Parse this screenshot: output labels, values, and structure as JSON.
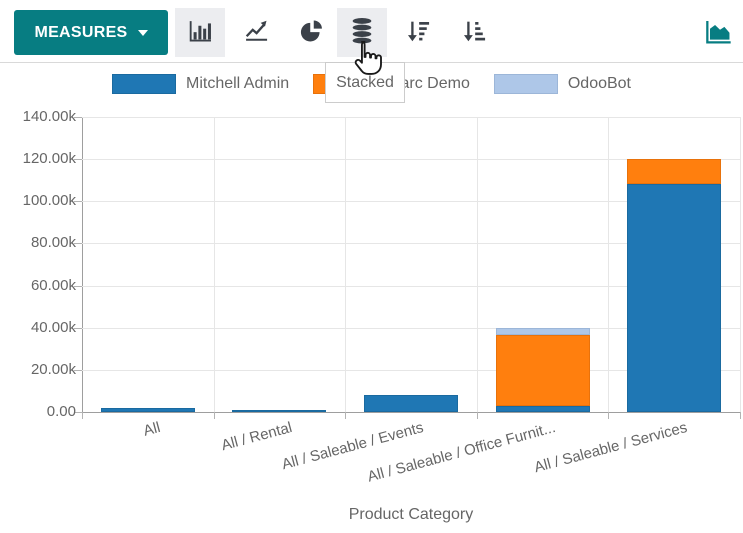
{
  "toolbar": {
    "measures_label": "MEASURES",
    "stacked_tooltip": "Stacked",
    "buttons": [
      {
        "name": "bar-chart",
        "active": true
      },
      {
        "name": "line-chart",
        "active": false
      },
      {
        "name": "pie-chart",
        "active": false
      },
      {
        "name": "stacked-toggle",
        "active": false,
        "hovered": true
      },
      {
        "name": "sort-descending",
        "active": false
      },
      {
        "name": "sort-ascending",
        "active": false
      },
      {
        "name": "area-chart",
        "active": false
      }
    ]
  },
  "colors": {
    "accent_teal": "#077d82",
    "icon_gray": "#3b4149",
    "active_button_bg": "#ecedf0",
    "axis_text": "#666666",
    "gridline": "#e6e6e6",
    "axis_line": "#9e9e9e"
  },
  "chart_data": {
    "type": "bar",
    "stacked": true,
    "title": "",
    "xlabel": "Product Category",
    "ylabel": "",
    "ylim": [
      0,
      140000
    ],
    "ytick_step": 20000,
    "ytick_labels": [
      "0.00",
      "20.00k",
      "40.00k",
      "60.00k",
      "80.00k",
      "100.00k",
      "120.00k",
      "140.00k"
    ],
    "grid": true,
    "legend_position": "top",
    "categories": [
      "All",
      "All / Rental",
      "All / Saleable / Events",
      "All / Saleable / Office Furnit...",
      "All / Saleable / Services"
    ],
    "series": [
      {
        "name": "Mitchell Admin",
        "color": "#1f77b4",
        "border_color": "#1a6aa0",
        "values": [
          2000,
          1000,
          8000,
          3000,
          108000
        ]
      },
      {
        "name": "Marc Demo",
        "color": "#ff7f0e",
        "border_color": "#e8720b",
        "values": [
          0,
          0,
          0,
          33500,
          12000
        ]
      },
      {
        "name": "OdooBot",
        "color": "#aec7e8",
        "border_color": "#9cb6d8",
        "values": [
          0,
          0,
          0,
          3500,
          0
        ]
      }
    ]
  }
}
